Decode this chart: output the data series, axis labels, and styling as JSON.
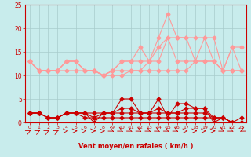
{
  "x": [
    0,
    1,
    2,
    3,
    4,
    5,
    6,
    7,
    8,
    9,
    10,
    11,
    12,
    13,
    14,
    15,
    16,
    17,
    18,
    19,
    20,
    21,
    22,
    23
  ],
  "line_light1": [
    13,
    11,
    11,
    11,
    13,
    13,
    11,
    11,
    10,
    11,
    13,
    13,
    16,
    13,
    18,
    23,
    18,
    18,
    18,
    18,
    18,
    11,
    16,
    16
  ],
  "line_light2": [
    13,
    11,
    11,
    11,
    13,
    13,
    11,
    11,
    10,
    11,
    13,
    13,
    13,
    13,
    16,
    18,
    18,
    18,
    13,
    18,
    13,
    11,
    16,
    11
  ],
  "line_light3": [
    13,
    11,
    11,
    11,
    13,
    13,
    11,
    11,
    10,
    11,
    11,
    11,
    11,
    13,
    13,
    18,
    13,
    13,
    13,
    13,
    13,
    11,
    11,
    11
  ],
  "line_light4": [
    13,
    11,
    11,
    11,
    11,
    11,
    11,
    11,
    10,
    10,
    10,
    11,
    11,
    11,
    11,
    11,
    11,
    11,
    13,
    13,
    13,
    11,
    11,
    11
  ],
  "line_dark1": [
    2,
    2,
    1,
    1,
    2,
    2,
    2,
    0,
    2,
    2,
    5,
    5,
    2,
    2,
    5,
    1,
    4,
    4,
    3,
    3,
    0,
    1,
    0,
    0
  ],
  "line_dark2": [
    2,
    2,
    1,
    1,
    2,
    2,
    2,
    1,
    2,
    2,
    3,
    3,
    2,
    2,
    3,
    2,
    2,
    3,
    3,
    3,
    1,
    1,
    0,
    0
  ],
  "line_dark3": [
    2,
    2,
    1,
    1,
    2,
    2,
    2,
    2,
    2,
    2,
    2,
    2,
    2,
    2,
    2,
    2,
    2,
    2,
    2,
    2,
    1,
    1,
    0,
    0
  ],
  "line_dark4": [
    2,
    2,
    1,
    1,
    2,
    2,
    1,
    1,
    1,
    1,
    1,
    1,
    1,
    1,
    1,
    1,
    1,
    1,
    1,
    1,
    1,
    1,
    0,
    1
  ],
  "color_light": "#FF9999",
  "color_dark": "#CC0000",
  "bg_color": "#C8ECEC",
  "grid_color": "#A8CCCC",
  "xlabel": "Vent moyen/en rafales ( km/h )",
  "ylim": [
    0,
    25
  ],
  "xlim": [
    -0.5,
    23.5
  ],
  "yticks": [
    0,
    5,
    10,
    15,
    20,
    25
  ],
  "xticks": [
    0,
    1,
    2,
    3,
    4,
    5,
    6,
    7,
    8,
    9,
    10,
    11,
    12,
    13,
    14,
    15,
    16,
    17,
    18,
    19,
    20,
    21,
    22,
    23
  ],
  "wind_dirs_deg": [
    225,
    225,
    225,
    225,
    270,
    270,
    270,
    270,
    270,
    315,
    315,
    315,
    315,
    315,
    315,
    315,
    315,
    270,
    270,
    270,
    270,
    315,
    315,
    45
  ]
}
